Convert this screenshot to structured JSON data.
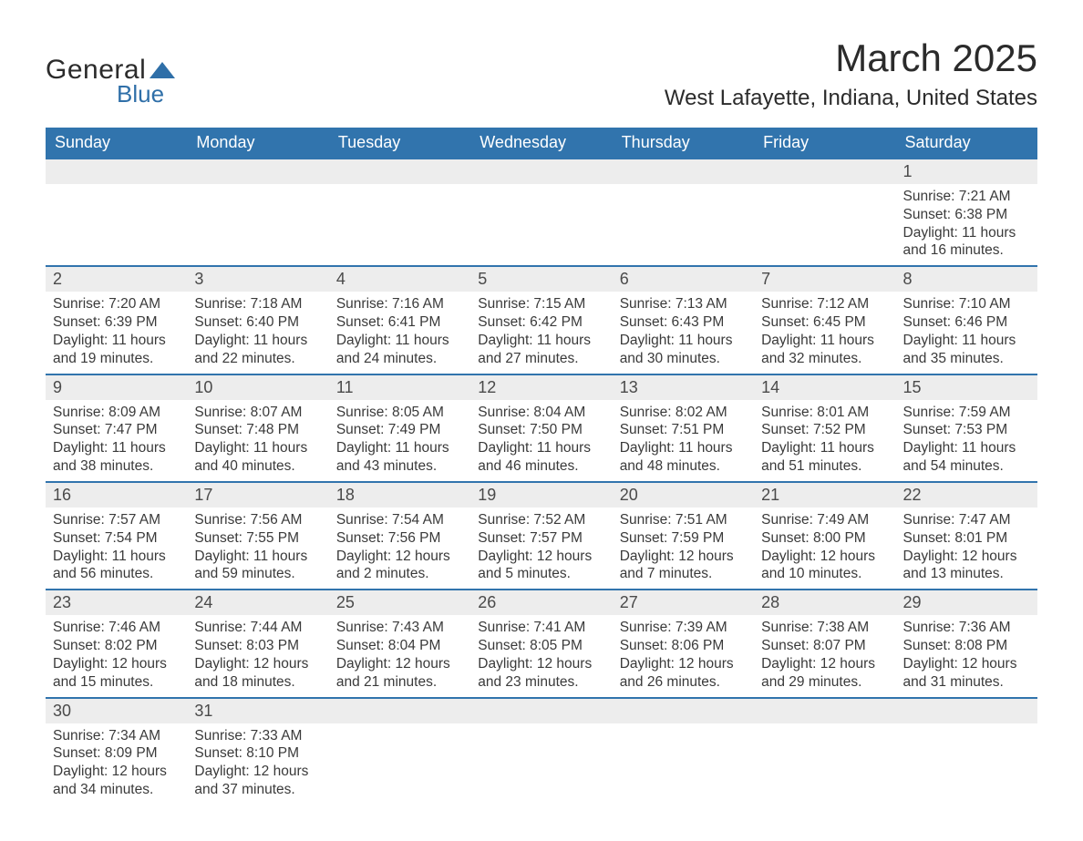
{
  "logo": {
    "word1": "General",
    "word2": "Blue",
    "tri_color": "#2f6fa8"
  },
  "title": "March 2025",
  "location": "West Lafayette, Indiana, United States",
  "colors": {
    "header_bg": "#3174ad",
    "header_text": "#ffffff",
    "daynum_bg": "#ededed",
    "border": "#3174ad",
    "text": "#3a3a3a"
  },
  "day_labels": [
    "Sunday",
    "Monday",
    "Tuesday",
    "Wednesday",
    "Thursday",
    "Friday",
    "Saturday"
  ],
  "weeks": [
    [
      null,
      null,
      null,
      null,
      null,
      null,
      {
        "n": "1",
        "sr": "7:21 AM",
        "ss": "6:38 PM",
        "dl": "11 hours and 16 minutes."
      }
    ],
    [
      {
        "n": "2",
        "sr": "7:20 AM",
        "ss": "6:39 PM",
        "dl": "11 hours and 19 minutes."
      },
      {
        "n": "3",
        "sr": "7:18 AM",
        "ss": "6:40 PM",
        "dl": "11 hours and 22 minutes."
      },
      {
        "n": "4",
        "sr": "7:16 AM",
        "ss": "6:41 PM",
        "dl": "11 hours and 24 minutes."
      },
      {
        "n": "5",
        "sr": "7:15 AM",
        "ss": "6:42 PM",
        "dl": "11 hours and 27 minutes."
      },
      {
        "n": "6",
        "sr": "7:13 AM",
        "ss": "6:43 PM",
        "dl": "11 hours and 30 minutes."
      },
      {
        "n": "7",
        "sr": "7:12 AM",
        "ss": "6:45 PM",
        "dl": "11 hours and 32 minutes."
      },
      {
        "n": "8",
        "sr": "7:10 AM",
        "ss": "6:46 PM",
        "dl": "11 hours and 35 minutes."
      }
    ],
    [
      {
        "n": "9",
        "sr": "8:09 AM",
        "ss": "7:47 PM",
        "dl": "11 hours and 38 minutes."
      },
      {
        "n": "10",
        "sr": "8:07 AM",
        "ss": "7:48 PM",
        "dl": "11 hours and 40 minutes."
      },
      {
        "n": "11",
        "sr": "8:05 AM",
        "ss": "7:49 PM",
        "dl": "11 hours and 43 minutes."
      },
      {
        "n": "12",
        "sr": "8:04 AM",
        "ss": "7:50 PM",
        "dl": "11 hours and 46 minutes."
      },
      {
        "n": "13",
        "sr": "8:02 AM",
        "ss": "7:51 PM",
        "dl": "11 hours and 48 minutes."
      },
      {
        "n": "14",
        "sr": "8:01 AM",
        "ss": "7:52 PM",
        "dl": "11 hours and 51 minutes."
      },
      {
        "n": "15",
        "sr": "7:59 AM",
        "ss": "7:53 PM",
        "dl": "11 hours and 54 minutes."
      }
    ],
    [
      {
        "n": "16",
        "sr": "7:57 AM",
        "ss": "7:54 PM",
        "dl": "11 hours and 56 minutes."
      },
      {
        "n": "17",
        "sr": "7:56 AM",
        "ss": "7:55 PM",
        "dl": "11 hours and 59 minutes."
      },
      {
        "n": "18",
        "sr": "7:54 AM",
        "ss": "7:56 PM",
        "dl": "12 hours and 2 minutes."
      },
      {
        "n": "19",
        "sr": "7:52 AM",
        "ss": "7:57 PM",
        "dl": "12 hours and 5 minutes."
      },
      {
        "n": "20",
        "sr": "7:51 AM",
        "ss": "7:59 PM",
        "dl": "12 hours and 7 minutes."
      },
      {
        "n": "21",
        "sr": "7:49 AM",
        "ss": "8:00 PM",
        "dl": "12 hours and 10 minutes."
      },
      {
        "n": "22",
        "sr": "7:47 AM",
        "ss": "8:01 PM",
        "dl": "12 hours and 13 minutes."
      }
    ],
    [
      {
        "n": "23",
        "sr": "7:46 AM",
        "ss": "8:02 PM",
        "dl": "12 hours and 15 minutes."
      },
      {
        "n": "24",
        "sr": "7:44 AM",
        "ss": "8:03 PM",
        "dl": "12 hours and 18 minutes."
      },
      {
        "n": "25",
        "sr": "7:43 AM",
        "ss": "8:04 PM",
        "dl": "12 hours and 21 minutes."
      },
      {
        "n": "26",
        "sr": "7:41 AM",
        "ss": "8:05 PM",
        "dl": "12 hours and 23 minutes."
      },
      {
        "n": "27",
        "sr": "7:39 AM",
        "ss": "8:06 PM",
        "dl": "12 hours and 26 minutes."
      },
      {
        "n": "28",
        "sr": "7:38 AM",
        "ss": "8:07 PM",
        "dl": "12 hours and 29 minutes."
      },
      {
        "n": "29",
        "sr": "7:36 AM",
        "ss": "8:08 PM",
        "dl": "12 hours and 31 minutes."
      }
    ],
    [
      {
        "n": "30",
        "sr": "7:34 AM",
        "ss": "8:09 PM",
        "dl": "12 hours and 34 minutes."
      },
      {
        "n": "31",
        "sr": "7:33 AM",
        "ss": "8:10 PM",
        "dl": "12 hours and 37 minutes."
      },
      null,
      null,
      null,
      null,
      null
    ]
  ],
  "labels": {
    "sunrise": "Sunrise: ",
    "sunset": "Sunset: ",
    "daylight": "Daylight: "
  }
}
